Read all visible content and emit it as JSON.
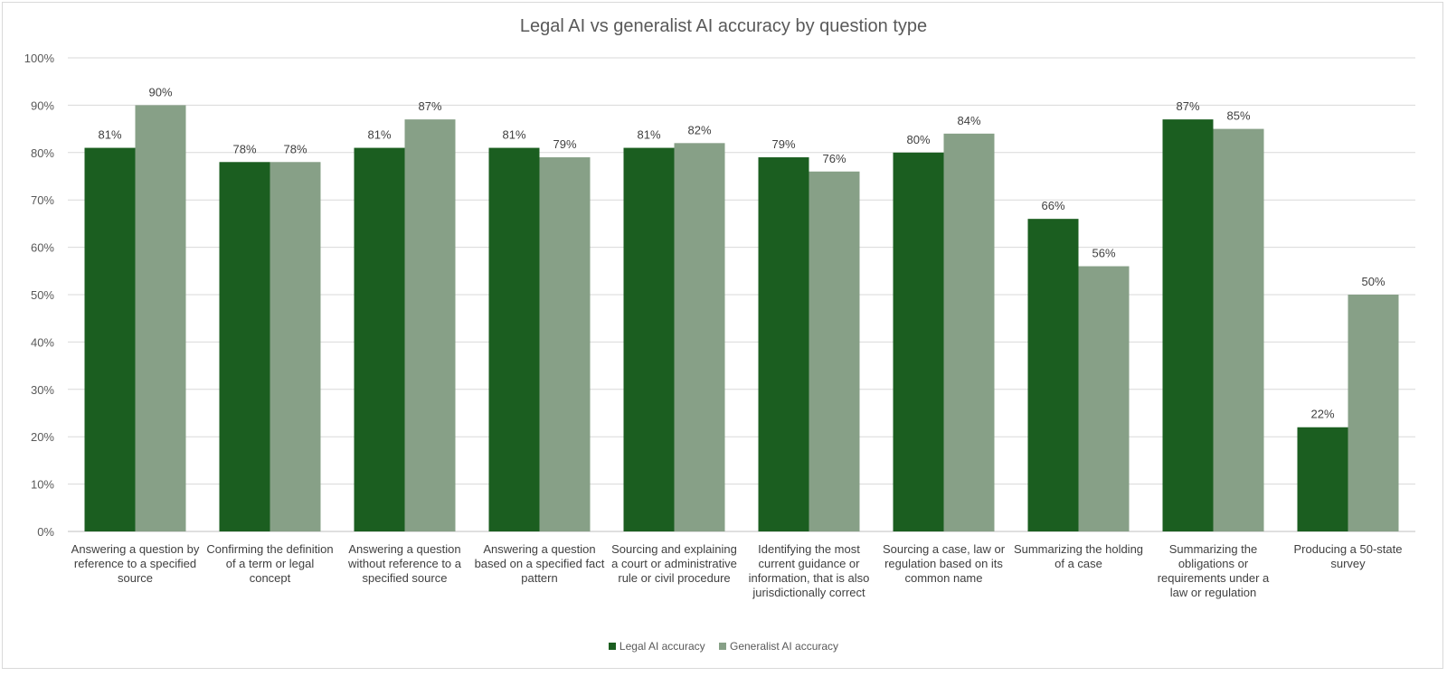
{
  "chart_data": {
    "type": "bar",
    "title": "Legal AI vs generalist AI accuracy by question type",
    "categories": [
      "Answering a question by reference to a specified source",
      "Confirming the definition of a term or legal concept",
      "Answering a question without reference to a specified source",
      "Answering a question based on a specified fact pattern",
      "Sourcing and explaining a court or administrative rule or civil procedure",
      "Identifying the most current guidance or information, that is also jurisdictionally correct",
      "Sourcing a case, law or regulation based on its common name",
      "Summarizing the holding of a case",
      "Summarizing the obligations or requirements under a law or regulation",
      "Producing a 50-state survey"
    ],
    "series": [
      {
        "name": "Legal AI accuracy",
        "color": "#1b5e20",
        "values": [
          81,
          78,
          81,
          81,
          81,
          79,
          80,
          66,
          87,
          22
        ]
      },
      {
        "name": "Generalist AI accuracy",
        "color": "#87a087",
        "values": [
          90,
          78,
          87,
          79,
          82,
          76,
          84,
          56,
          85,
          50
        ]
      }
    ],
    "ylim": [
      0,
      100
    ],
    "yticks": [
      "0%",
      "10%",
      "20%",
      "30%",
      "40%",
      "50%",
      "60%",
      "70%",
      "80%",
      "90%",
      "100%"
    ],
    "grid": true,
    "legend": "bottom",
    "xlabel": "",
    "ylabel": ""
  }
}
